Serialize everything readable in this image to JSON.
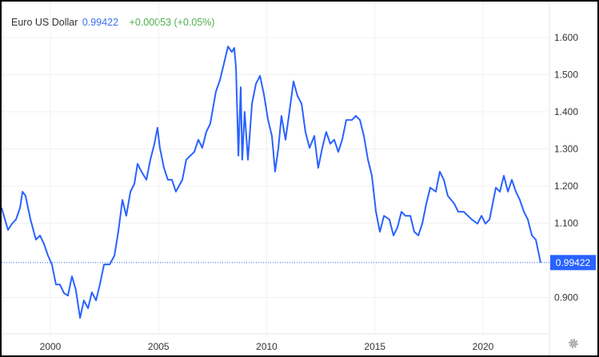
{
  "header": {
    "title": "Euro US Dollar",
    "price": "0.99422",
    "change": "+0.00053 (+0.05%)"
  },
  "colors": {
    "line": "#2962ff",
    "badge": "#2962ff",
    "change": "#4caf50"
  },
  "settings_icon": "gear-icon",
  "chart_data": {
    "type": "line",
    "title": "",
    "xlabel": "",
    "ylabel": "",
    "xlim": [
      1997.7,
      2022.7
    ],
    "ylim": [
      0.8,
      1.68
    ],
    "x_ticks": [
      "2000",
      "2005",
      "2010",
      "2015",
      "2020"
    ],
    "y_ticks": [
      "1.600",
      "1.500",
      "1.400",
      "1.300",
      "1.200",
      "1.100",
      "0.900"
    ],
    "grid": true,
    "last_value_label": "0.99422",
    "x": [
      1997.74,
      1998.04,
      1998.23,
      1998.41,
      1998.6,
      1998.71,
      1998.85,
      1999.08,
      1999.33,
      1999.52,
      1999.7,
      1999.89,
      2000.07,
      2000.26,
      2000.44,
      2000.63,
      2000.81,
      2001.0,
      2001.18,
      2001.37,
      2001.55,
      2001.74,
      2001.92,
      2002.11,
      2002.29,
      2002.48,
      2002.74,
      2002.96,
      2003.14,
      2003.33,
      2003.51,
      2003.7,
      2003.88,
      2004.03,
      2004.21,
      2004.44,
      2004.62,
      2004.81,
      2004.95,
      2005.06,
      2005.25,
      2005.43,
      2005.62,
      2005.8,
      2006.1,
      2006.28,
      2006.47,
      2006.65,
      2006.84,
      2007.02,
      2007.21,
      2007.39,
      2007.65,
      2007.84,
      2008.02,
      2008.21,
      2008.39,
      2008.5,
      2008.58,
      2008.69,
      2008.8,
      2008.87,
      2008.98,
      2009.13,
      2009.32,
      2009.5,
      2009.69,
      2009.87,
      2010.06,
      2010.24,
      2010.39,
      2010.54,
      2010.68,
      2010.87,
      2011.05,
      2011.24,
      2011.42,
      2011.61,
      2011.79,
      2011.98,
      2012.2,
      2012.38,
      2012.57,
      2012.75,
      2012.94,
      2013.12,
      2013.31,
      2013.49,
      2013.68,
      2013.94,
      2014.12,
      2014.31,
      2014.49,
      2014.68,
      2014.86,
      2015.05,
      2015.23,
      2015.42,
      2015.67,
      2015.86,
      2016.04,
      2016.23,
      2016.41,
      2016.64,
      2016.82,
      2017.01,
      2017.19,
      2017.38,
      2017.56,
      2017.82,
      2018.0,
      2018.19,
      2018.37,
      2018.67,
      2018.85,
      2019.11,
      2019.48,
      2019.74,
      2019.93,
      2020.11,
      2020.3,
      2020.48,
      2020.59,
      2020.78,
      2020.96,
      2021.15,
      2021.33,
      2021.52,
      2021.7,
      2021.89,
      2022.07,
      2022.26,
      2022.44,
      2022.66
    ],
    "y": [
      1.142,
      1.082,
      1.099,
      1.11,
      1.142,
      1.185,
      1.174,
      1.11,
      1.056,
      1.067,
      1.045,
      1.013,
      0.989,
      0.935,
      0.935,
      0.912,
      0.905,
      0.957,
      0.92,
      0.845,
      0.892,
      0.871,
      0.914,
      0.892,
      0.935,
      0.989,
      0.989,
      1.013,
      1.077,
      1.163,
      1.12,
      1.185,
      1.206,
      1.26,
      1.239,
      1.217,
      1.271,
      1.314,
      1.357,
      1.303,
      1.249,
      1.217,
      1.217,
      1.185,
      1.217,
      1.271,
      1.282,
      1.292,
      1.325,
      1.303,
      1.346,
      1.368,
      1.454,
      1.486,
      1.529,
      1.576,
      1.561,
      1.572,
      1.518,
      1.282,
      1.466,
      1.271,
      1.4,
      1.271,
      1.422,
      1.475,
      1.497,
      1.447,
      1.379,
      1.335,
      1.239,
      1.303,
      1.389,
      1.325,
      1.4,
      1.482,
      1.443,
      1.422,
      1.346,
      1.303,
      1.335,
      1.249,
      1.303,
      1.346,
      1.314,
      1.325,
      1.292,
      1.325,
      1.378,
      1.378,
      1.389,
      1.378,
      1.335,
      1.271,
      1.228,
      1.131,
      1.077,
      1.12,
      1.11,
      1.067,
      1.088,
      1.131,
      1.12,
      1.12,
      1.077,
      1.067,
      1.099,
      1.153,
      1.196,
      1.185,
      1.239,
      1.217,
      1.174,
      1.153,
      1.131,
      1.131,
      1.11,
      1.099,
      1.12,
      1.099,
      1.11,
      1.163,
      1.196,
      1.185,
      1.228,
      1.185,
      1.217,
      1.185,
      1.163,
      1.131,
      1.11,
      1.067,
      1.056,
      0.994
    ]
  }
}
